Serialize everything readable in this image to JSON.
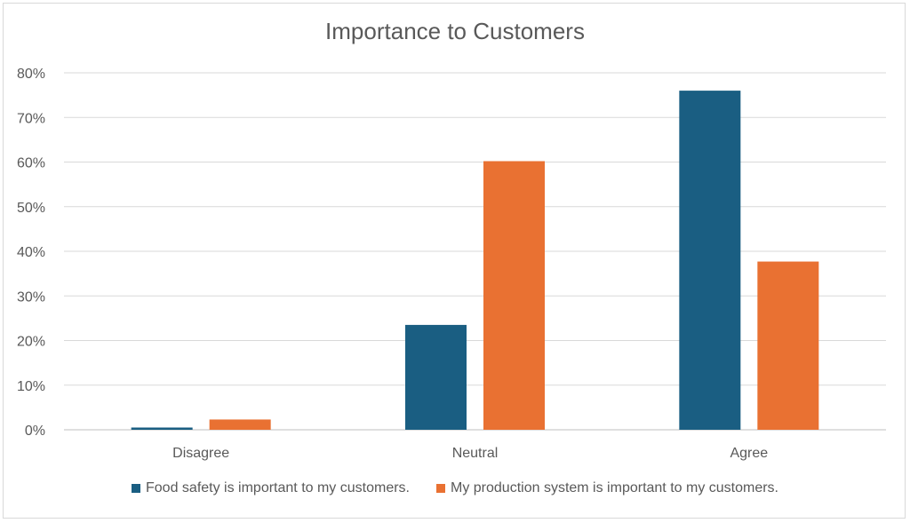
{
  "chart_data": {
    "type": "bar",
    "title": "Importance to Customers",
    "categories": [
      "Disagree",
      "Neutral",
      "Agree"
    ],
    "series": [
      {
        "name": "Food safety is important to my customers.",
        "color": "#1a5e82",
        "values": [
          0.5,
          23.5,
          76
        ]
      },
      {
        "name": "My production system is important to my customers.",
        "color": "#e97132",
        "values": [
          2.3,
          60.2,
          37.7
        ]
      }
    ],
    "y_ticks": [
      "0%",
      "10%",
      "20%",
      "30%",
      "40%",
      "50%",
      "60%",
      "70%",
      "80%"
    ],
    "ylim": [
      0,
      80
    ],
    "xlabel": "",
    "ylabel": "",
    "grid": true,
    "legend_position": "bottom"
  }
}
